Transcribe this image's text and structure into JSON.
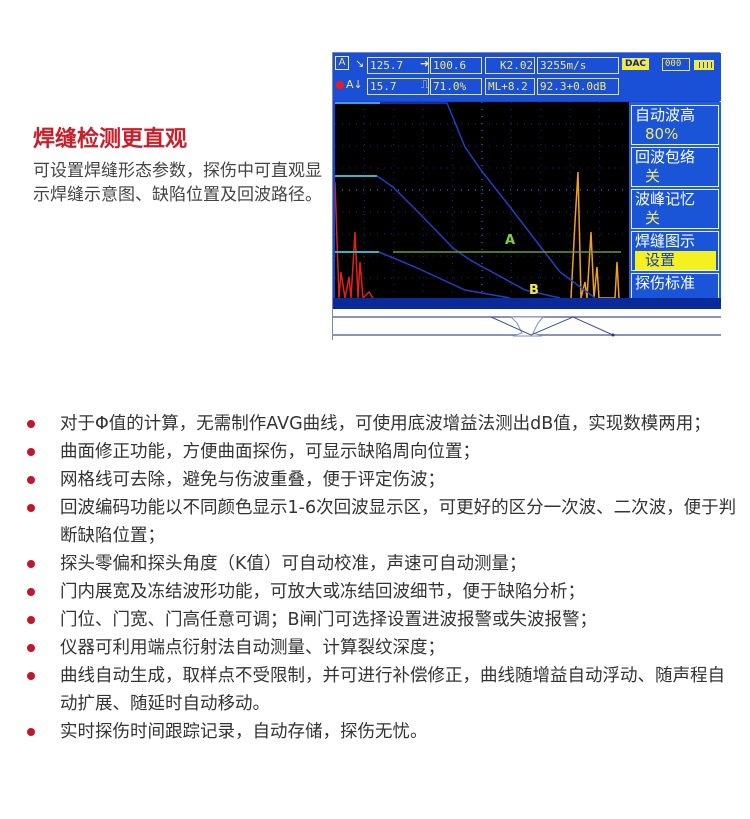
{
  "section": {
    "title": "焊缝检测更直观",
    "description": "可设置焊缝形态参数，探伤中可直观显示焊缝示意图、缺陷位置及回波路径。"
  },
  "device": {
    "topbar": {
      "sound_path": "125.7",
      "depth": "100.6",
      "k_value": "K2.02",
      "velocity": "3255m/s",
      "horizontal": "15.7",
      "amplitude": "71.0%",
      "ml": "ML+8.2",
      "gain": "92.3+0.0dB",
      "curve_mode": "DAC",
      "counter": "000"
    },
    "menu": [
      {
        "label": "自动波高",
        "value": "80%"
      },
      {
        "label": "回波包络",
        "value": "关"
      },
      {
        "label": "波峰记忆",
        "value": "关"
      },
      {
        "label": "焊缝图示",
        "value": "设置",
        "selected": true
      },
      {
        "label": "探伤标准",
        "value": ""
      }
    ],
    "gate_a_label": "A",
    "gate_b_label": "B",
    "colors": {
      "frame": "#1a4fd8",
      "text": "#f2ea6a",
      "curve": "#2040c0",
      "gate": "#6a9a30",
      "echo": "#f0a020",
      "noise": "#e02020"
    }
  },
  "features": [
    "对于Φ值的计算，无需制作AVG曲线，可使用底波增益法测出dB值，实现数模两用；",
    "曲面修正功能，方便曲面探伤，可显示缺陷周向位置；",
    "网格线可去除，避免与伤波重叠，便于评定伤波；",
    "回波编码功能以不同颜色显示1-6次回波显示区，可更好的区分一次波、二次波，便于判断缺陷位置；",
    "探头零偏和探头角度（K值）可自动校准，声速可自动测量；",
    "门内展宽及冻结波形功能，可放大或冻结回波细节，便于缺陷分析；",
    "门位、门宽、门高任意可调；B闸门可选择设置进波报警或失波报警；",
    "仪器可利用端点衍射法自动测量、计算裂纹深度；",
    "曲线自动生成，取样点不受限制，并可进行补偿修正，曲线随增益自动浮动、随声程自动扩展、随延时自动移动。",
    "实时探伤时间跟踪记录，自动存储，探伤无忧。"
  ]
}
